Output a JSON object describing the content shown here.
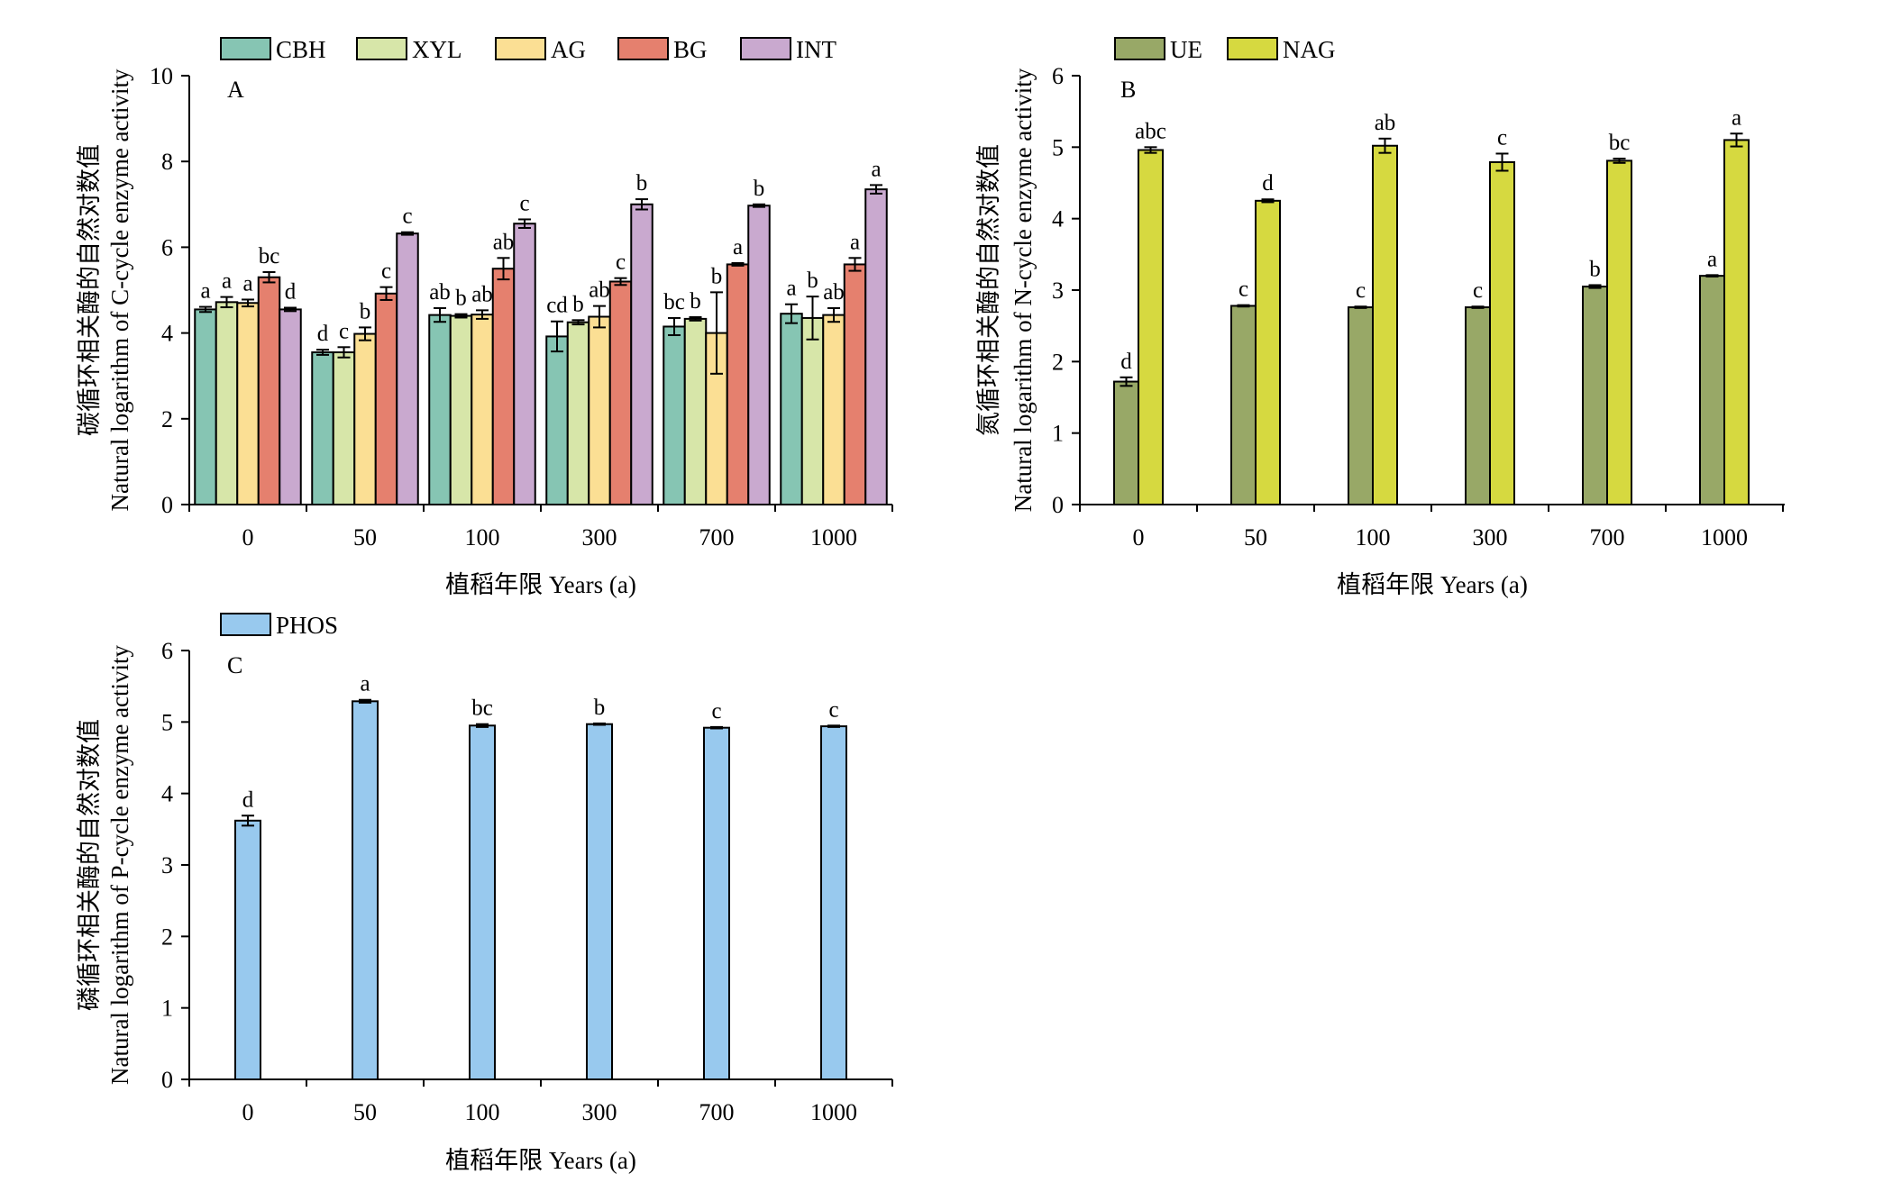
{
  "chart_data": [
    {
      "panel": "A",
      "type": "bar",
      "categories": [
        "0",
        "50",
        "100",
        "300",
        "700",
        "1000"
      ],
      "xlabel": "植稻年限 Years (a)",
      "ylabel_cn": "碳循环相关酶的自然对数值",
      "ylabel_en": "Natural logarithm of C-cycle enzyme activity",
      "ylim": [
        0,
        10
      ],
      "yticks": [
        "0",
        "2",
        "4",
        "6",
        "8",
        "10"
      ],
      "legend_position": "top",
      "series": [
        {
          "name": "CBH",
          "color": "#86c5b3",
          "values": [
            4.55,
            3.55,
            4.42,
            3.92,
            4.15,
            4.45
          ],
          "errors": [
            0.06,
            0.06,
            0.16,
            0.35,
            0.2,
            0.22
          ],
          "labels": [
            "a",
            "d",
            "ab",
            "cd",
            "bc",
            "a"
          ]
        },
        {
          "name": "XYL",
          "color": "#d7e6a9",
          "values": [
            4.72,
            3.55,
            4.4,
            4.25,
            4.33,
            4.35
          ],
          "errors": [
            0.12,
            0.12,
            0.04,
            0.05,
            0.04,
            0.5
          ],
          "labels": [
            "a",
            "c",
            "b",
            "b",
            "b",
            "b"
          ]
        },
        {
          "name": "AG",
          "color": "#fbdf94",
          "values": [
            4.7,
            3.98,
            4.43,
            4.38,
            4.0,
            4.42
          ],
          "errors": [
            0.08,
            0.15,
            0.1,
            0.25,
            0.95,
            0.16
          ],
          "labels": [
            "a",
            "b",
            "ab",
            "ab",
            "b",
            "ab"
          ]
        },
        {
          "name": "BG",
          "color": "#e5806e",
          "values": [
            5.3,
            4.92,
            5.5,
            5.2,
            5.6,
            5.6
          ],
          "errors": [
            0.12,
            0.15,
            0.25,
            0.08,
            0.03,
            0.15
          ],
          "labels": [
            "bc",
            "c",
            "ab",
            "c",
            "a",
            "a"
          ]
        },
        {
          "name": "INT",
          "color": "#c9a9cf",
          "values": [
            4.55,
            6.32,
            6.55,
            7.0,
            6.97,
            7.35
          ],
          "errors": [
            0.04,
            0.03,
            0.1,
            0.12,
            0.03,
            0.1
          ],
          "labels": [
            "d",
            "c",
            "c",
            "b",
            "b",
            "a"
          ]
        }
      ]
    },
    {
      "panel": "B",
      "type": "bar",
      "categories": [
        "0",
        "50",
        "100",
        "300",
        "700",
        "1000"
      ],
      "xlabel": "植稻年限 Years (a)",
      "ylabel_cn": "氮循环相关酶的自然对数值",
      "ylabel_en": "Natural logarithm of N-cycle enzyme activity",
      "ylim": [
        0,
        6
      ],
      "yticks": [
        "0",
        "1",
        "2",
        "3",
        "4",
        "5",
        "6"
      ],
      "legend_position": "top",
      "series": [
        {
          "name": "UE",
          "color": "#98a867",
          "values": [
            1.72,
            2.78,
            2.76,
            2.76,
            3.05,
            3.2
          ],
          "errors": [
            0.06,
            0.01,
            0.01,
            0.01,
            0.02,
            0.01
          ],
          "labels": [
            "d",
            "c",
            "c",
            "c",
            "b",
            "a"
          ]
        },
        {
          "name": "NAG",
          "color": "#d6d940",
          "values": [
            4.96,
            4.25,
            5.02,
            4.79,
            4.81,
            5.1
          ],
          "errors": [
            0.04,
            0.02,
            0.1,
            0.12,
            0.03,
            0.09
          ],
          "labels": [
            "abc",
            "d",
            "ab",
            "c",
            "bc",
            "a"
          ]
        }
      ]
    },
    {
      "panel": "C",
      "type": "bar",
      "categories": [
        "0",
        "50",
        "100",
        "300",
        "700",
        "1000"
      ],
      "xlabel": "植稻年限 Years (a)",
      "ylabel_cn": "磷循环相关酶的自然对数值",
      "ylabel_en": "Natural logarithm of P-cycle enzyme activity",
      "ylim": [
        0,
        6
      ],
      "yticks": [
        "0",
        "1",
        "2",
        "3",
        "4",
        "5",
        "6"
      ],
      "legend_position": "top",
      "series": [
        {
          "name": "PHOS",
          "color": "#98c9ee",
          "values": [
            3.62,
            5.29,
            4.95,
            4.97,
            4.92,
            4.94
          ],
          "errors": [
            0.07,
            0.02,
            0.02,
            0.01,
            0.01,
            0.01
          ],
          "labels": [
            "d",
            "a",
            "bc",
            "b",
            "c",
            "c"
          ]
        }
      ]
    }
  ]
}
